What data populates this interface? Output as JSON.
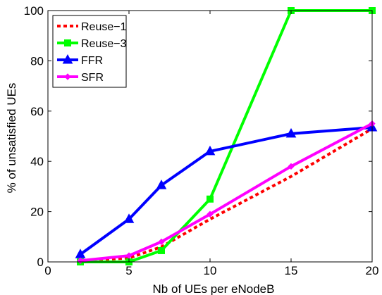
{
  "chart_data": {
    "type": "line",
    "xlabel": "Nb of UEs per eNodeB",
    "ylabel": "% of unsatisfied UEs",
    "xlim": [
      0,
      20
    ],
    "ylim": [
      0,
      100
    ],
    "xticks": [
      0,
      5,
      10,
      15,
      20
    ],
    "yticks": [
      0,
      20,
      40,
      60,
      80,
      100
    ],
    "grid": false,
    "legend_position": "top-left",
    "series": [
      {
        "name": "Reuse−1",
        "color": "#ff0000",
        "style": "dotted",
        "marker": "none",
        "x": [
          2,
          5,
          7,
          10,
          15,
          20
        ],
        "y": [
          0.5,
          1.5,
          6,
          17,
          34,
          53
        ]
      },
      {
        "name": "Reuse−3",
        "color": "#00ff00",
        "style": "solid",
        "marker": "square",
        "x": [
          2,
          5,
          7,
          10,
          15,
          20
        ],
        "y": [
          0,
          0,
          4.5,
          25,
          100,
          100
        ]
      },
      {
        "name": "FFR",
        "color": "#0000ff",
        "style": "solid",
        "marker": "triangle",
        "x": [
          2,
          5,
          7,
          10,
          15,
          20
        ],
        "y": [
          3,
          17,
          30.5,
          44,
          51,
          53.5
        ]
      },
      {
        "name": "SFR",
        "color": "#ff00ff",
        "style": "solid",
        "marker": "diamond",
        "x": [
          2,
          5,
          7,
          10,
          15,
          20
        ],
        "y": [
          0.5,
          2.5,
          8,
          19,
          38,
          55
        ]
      }
    ]
  }
}
